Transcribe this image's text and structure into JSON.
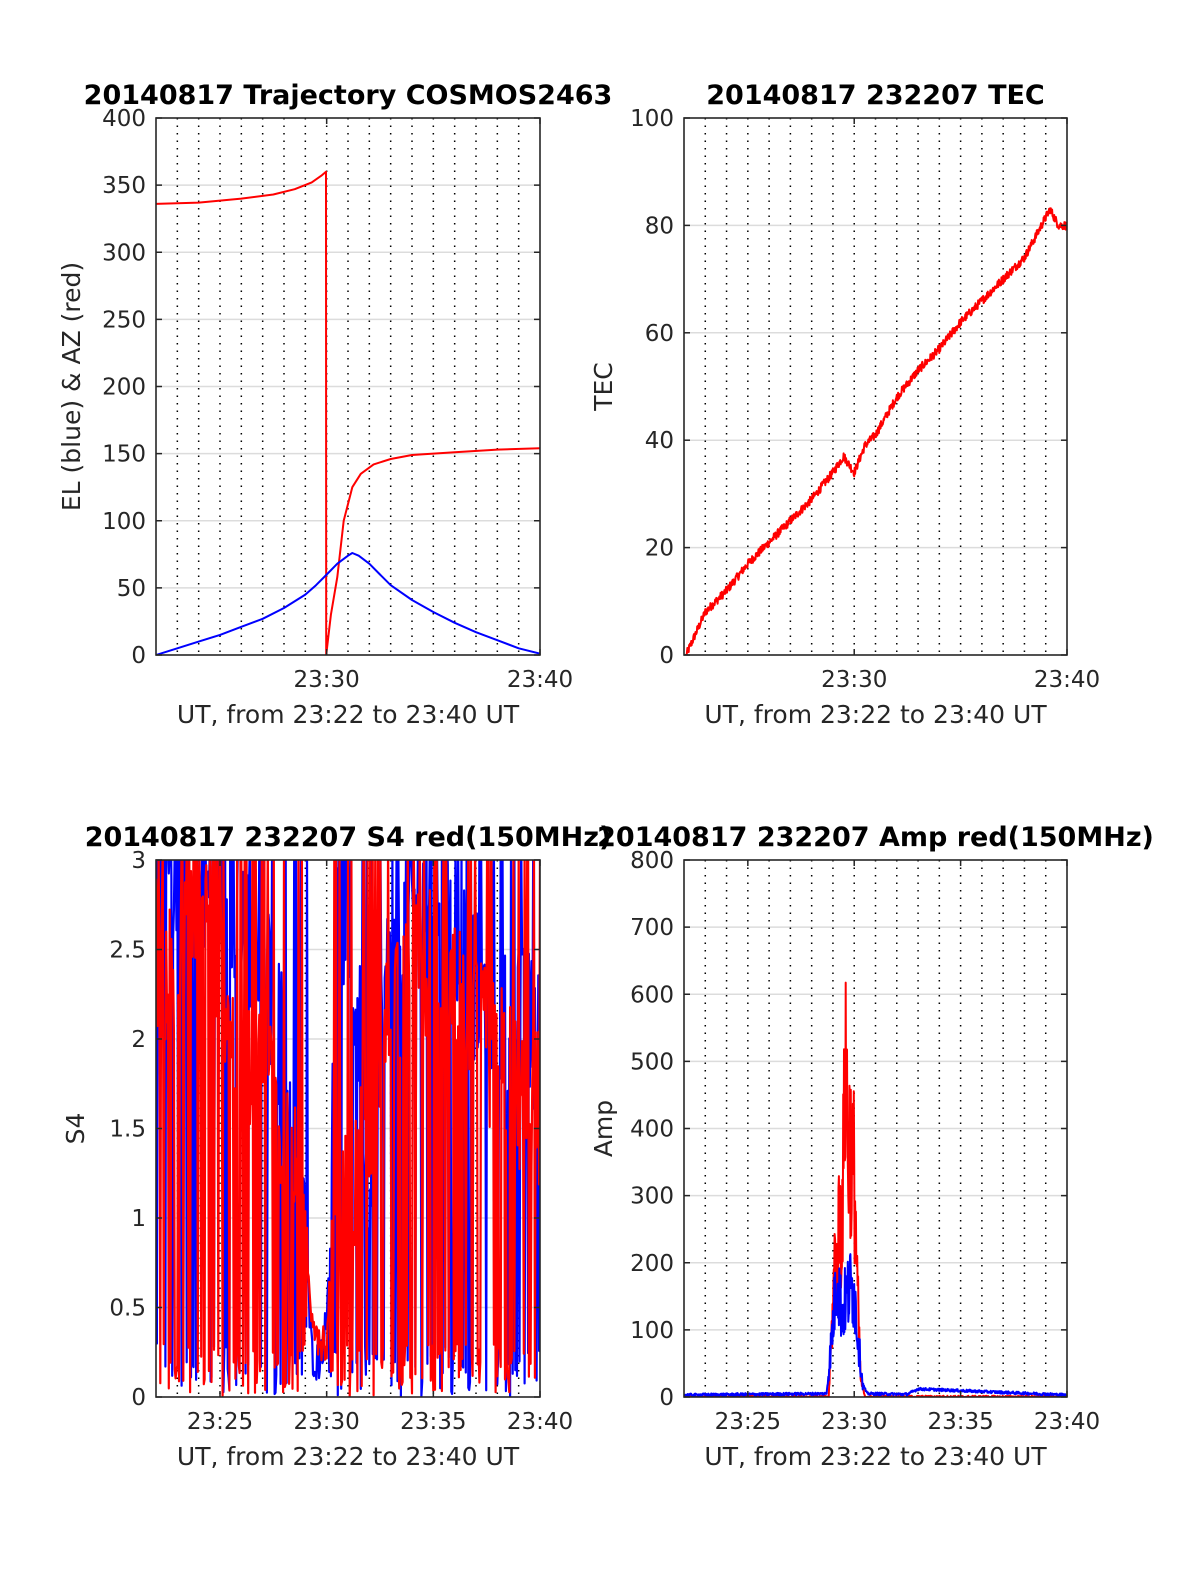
{
  "chart_data": [
    {
      "type": "line",
      "title": "20140817 Trajectory COSMOS2463",
      "xlabel": "UT, from 23:22 to 23:40 UT",
      "ylabel": "EL (blue) & AZ (red)",
      "x_unit": "minutes of hour 23 UT",
      "xlim": [
        22,
        40
      ],
      "ylim": [
        0,
        400
      ],
      "xticks": [
        30,
        40
      ],
      "xtick_labels": [
        "23:30",
        "23:40"
      ],
      "yticks": [
        0,
        50,
        100,
        150,
        200,
        250,
        300,
        350,
        400
      ],
      "ytick_labels": [
        "0",
        "50",
        "100",
        "150",
        "200",
        "250",
        "300",
        "350",
        "400"
      ],
      "grid": {
        "x_dotted_every_minute": true,
        "y_solid": true
      },
      "series": [
        {
          "color": "#ff0000",
          "x": [
            22,
            24,
            26,
            27.5,
            28.5,
            29.3,
            29.75,
            29.97,
            29.98,
            30.2,
            30.5,
            30.8,
            31.2,
            31.6,
            32.2,
            33,
            34,
            36,
            38,
            40
          ],
          "y": [
            336,
            337,
            340,
            343,
            347,
            352,
            357,
            360,
            0,
            30,
            58,
            100,
            125,
            135,
            142,
            146,
            149,
            151,
            153,
            154
          ]
        },
        {
          "color": "#0000ff",
          "x": [
            22,
            23,
            24,
            25,
            26,
            27,
            28,
            29,
            29.5,
            30,
            30.5,
            31,
            31.2,
            31.5,
            32,
            32.5,
            33,
            34,
            35,
            36,
            37,
            38,
            39,
            40
          ],
          "y": [
            0,
            5,
            10,
            15,
            21,
            27,
            35,
            45,
            52,
            60,
            68,
            74,
            76,
            74,
            68,
            60,
            52,
            41,
            32,
            24,
            17,
            11,
            5,
            1
          ]
        }
      ]
    },
    {
      "type": "line",
      "title": "20140817 232207 TEC",
      "xlabel": "UT, from 23:22 to 23:40 UT",
      "ylabel": "TEC",
      "x_unit": "minutes of hour 23 UT",
      "xlim": [
        22,
        40
      ],
      "ylim": [
        0,
        100
      ],
      "xticks": [
        30,
        40
      ],
      "xtick_labels": [
        "23:30",
        "23:40"
      ],
      "yticks": [
        0,
        20,
        40,
        60,
        80,
        100
      ],
      "ytick_labels": [
        "0",
        "20",
        "40",
        "60",
        "80",
        "100"
      ],
      "grid": {
        "x_dotted_every_minute": true,
        "y_solid": true
      },
      "series": [
        {
          "color": "#ff0000",
          "x": [
            22.1,
            23,
            24,
            25,
            26,
            27,
            28,
            29,
            29.5,
            30,
            30.5,
            31,
            32,
            33,
            34,
            35,
            36,
            37,
            38,
            38.8,
            39.2,
            39.6,
            40
          ],
          "y": [
            0,
            8,
            12,
            17,
            21,
            25,
            29,
            34,
            37,
            34,
            39,
            41,
            48,
            53,
            57,
            62,
            66,
            70,
            74,
            80,
            83,
            80,
            80
          ]
        }
      ]
    },
    {
      "type": "line",
      "title": "20140817 232207 S4 red(150MHz)",
      "xlabel": "UT, from 23:22 to 23:40 UT",
      "ylabel": "S4",
      "x_unit": "minutes of hour 23 UT",
      "xlim": [
        22,
        40
      ],
      "ylim": [
        0,
        3
      ],
      "xticks": [
        25,
        30,
        35,
        40
      ],
      "xtick_labels": [
        "23:25",
        "23:30",
        "23:35",
        "23:40"
      ],
      "yticks": [
        0,
        0.5,
        1,
        1.5,
        2,
        2.5,
        3
      ],
      "ytick_labels": [
        "0",
        "0.5",
        "1",
        "1.5",
        "2",
        "2.5",
        "3"
      ],
      "grid": {
        "x_dotted_every_minute": true,
        "y_solid": true
      },
      "series": [
        {
          "color": "#0000ff",
          "x": [
            22,
            23,
            24,
            25,
            26,
            27,
            27.5,
            28,
            28.5,
            29,
            29.3,
            29.6,
            30,
            30.5,
            31,
            31.5,
            32,
            32.5,
            33,
            34,
            35,
            36,
            37,
            38,
            39,
            40
          ],
          "y": [
            2.9,
            3,
            2.7,
            3,
            2.6,
            2.5,
            2.2,
            1.9,
            1.4,
            0.9,
            0.25,
            0.2,
            0.4,
            2.8,
            2.6,
            2.1,
            1.2,
            2.1,
            2.4,
            2.7,
            2.9,
            2.6,
            2.3,
            2.2,
            2.1,
            2.0
          ]
        },
        {
          "color": "#ff0000",
          "x": [
            22,
            23,
            24,
            25,
            26,
            27,
            27.5,
            28,
            28.5,
            29,
            29.3,
            29.6,
            30,
            30.5,
            31,
            31.5,
            32,
            32.5,
            33,
            34,
            35,
            36,
            37,
            38,
            39,
            40
          ],
          "y": [
            2.5,
            2.3,
            2.8,
            2.5,
            1.7,
            2.1,
            1.7,
            1.5,
            1.2,
            0.8,
            0.5,
            0.35,
            0.3,
            0.9,
            1.1,
            1.2,
            1.6,
            1.9,
            2.2,
            2.4,
            2.4,
            2.2,
            2.0,
            1.9,
            1.7,
            1.6
          ]
        }
      ]
    },
    {
      "type": "line",
      "title": "20140817 232207 Amp red(150MHz)",
      "xlabel": "UT, from 23:22 to 23:40 UT",
      "ylabel": "Amp",
      "x_unit": "minutes of hour 23 UT",
      "xlim": [
        22,
        40
      ],
      "ylim": [
        0,
        800
      ],
      "xticks": [
        25,
        30,
        35,
        40
      ],
      "xtick_labels": [
        "23:25",
        "23:30",
        "23:35",
        "23:40"
      ],
      "yticks": [
        0,
        100,
        200,
        300,
        400,
        500,
        600,
        700,
        800
      ],
      "ytick_labels": [
        "0",
        "100",
        "200",
        "300",
        "400",
        "500",
        "600",
        "700",
        "800"
      ],
      "grid": {
        "x_dotted_every_minute": true,
        "y_solid": true
      },
      "series": [
        {
          "color": "#ff0000",
          "x": [
            22,
            28.8,
            29,
            29.1,
            29.2,
            29.3,
            29.4,
            29.5,
            29.6,
            29.7,
            29.8,
            29.9,
            30,
            30.1,
            30.2,
            30.3,
            30.5,
            40
          ],
          "y": [
            0,
            0,
            150,
            240,
            200,
            310,
            270,
            390,
            600,
            380,
            440,
            360,
            380,
            250,
            120,
            30,
            0,
            0
          ]
        },
        {
          "color": "#0000ff",
          "x": [
            22,
            28.7,
            29,
            29.2,
            29.4,
            29.6,
            29.8,
            30,
            30.2,
            30.4,
            30.6,
            32.5,
            33,
            40
          ],
          "y": [
            3,
            5,
            120,
            210,
            140,
            160,
            180,
            175,
            90,
            20,
            5,
            4,
            12,
            3
          ]
        }
      ]
    }
  ]
}
